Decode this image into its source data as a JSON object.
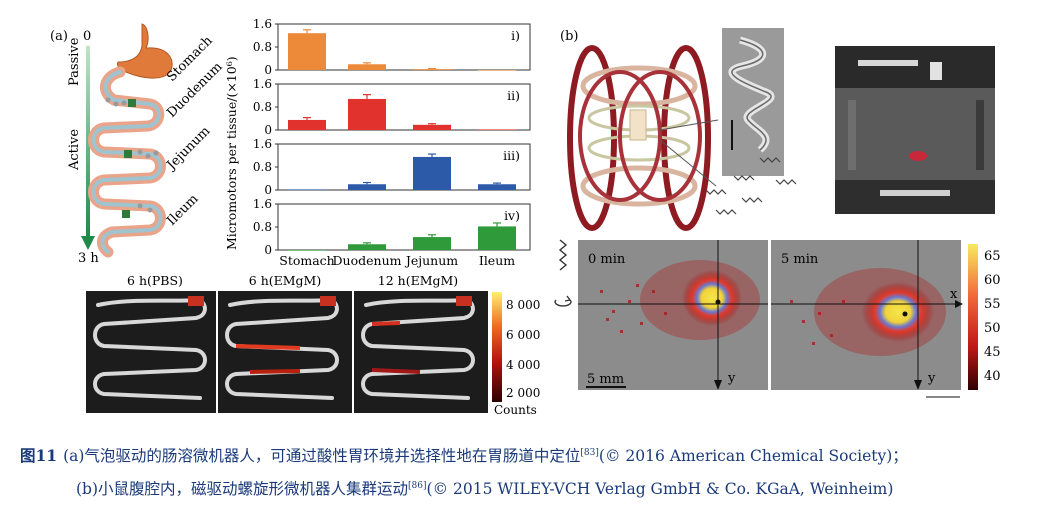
{
  "panel_a": {
    "label": "(a)",
    "passive_label": "Passive",
    "active_label": "Active",
    "time_start": "0",
    "time_end": "3 h",
    "organs": [
      "Stomach",
      "Duodenum",
      "Jejunum",
      "Ileum"
    ]
  },
  "chart_data": {
    "type": "bar",
    "ylabel": "Micromotors per tissue/(×10⁶)",
    "categories": [
      "Stomach",
      "Duodenum",
      "Jejunum",
      "Ileum"
    ],
    "ylim": [
      0,
      1.6
    ],
    "yticks": [
      "1.6",
      "0.8",
      "0"
    ],
    "series": [
      {
        "name": "i)",
        "color": "#ec8a3a",
        "values": [
          1.28,
          0.2,
          0.03,
          0.0
        ],
        "errors": [
          0.12,
          0.05,
          0.02,
          0.0
        ]
      },
      {
        "name": "ii)",
        "color": "#e2322d",
        "values": [
          0.35,
          1.08,
          0.18,
          0.02
        ],
        "errors": [
          0.08,
          0.15,
          0.04,
          0.0
        ]
      },
      {
        "name": "iii)",
        "color": "#2c5aa8",
        "values": [
          0.02,
          0.2,
          1.15,
          0.2
        ],
        "errors": [
          0.0,
          0.06,
          0.1,
          0.04
        ]
      },
      {
        "name": "iv)",
        "color": "#2e9a3a",
        "values": [
          0.0,
          0.2,
          0.45,
          0.82
        ],
        "errors": [
          0.0,
          0.05,
          0.08,
          0.12
        ]
      }
    ]
  },
  "gut_images": {
    "titles": [
      "6 h(PBS)",
      "6 h(EMgM)",
      "12 h(EMgM)"
    ],
    "colorbar_ticks": [
      "8 000",
      "6 000",
      "4 000",
      "2 000"
    ],
    "colorbar_label": "Counts"
  },
  "panel_b": {
    "label": "(b)",
    "heatmap_titles": [
      "0 min",
      "5 min"
    ],
    "scale_label": "5 mm",
    "axis_x": "x",
    "axis_y": "y",
    "colorbar_ticks": [
      "65",
      "60",
      "55",
      "50",
      "45",
      "40"
    ]
  },
  "caption": {
    "fig_no": "图11",
    "line1_text": "(a)气泡驱动的肠溶微机器人，可通过酸性胃环境并选择性地在胃肠道中定位",
    "line1_ref": "[83]",
    "line1_tail": "(© 2016 American Chemical Society)；",
    "line2_text": "(b)小鼠腹腔内，磁驱动螺旋形微机器人集群运动",
    "line2_ref": "[86]",
    "line2_tail": "(© 2015 WILEY-VCH Verlag GmbH & Co. KGaA, Weinheim)"
  }
}
